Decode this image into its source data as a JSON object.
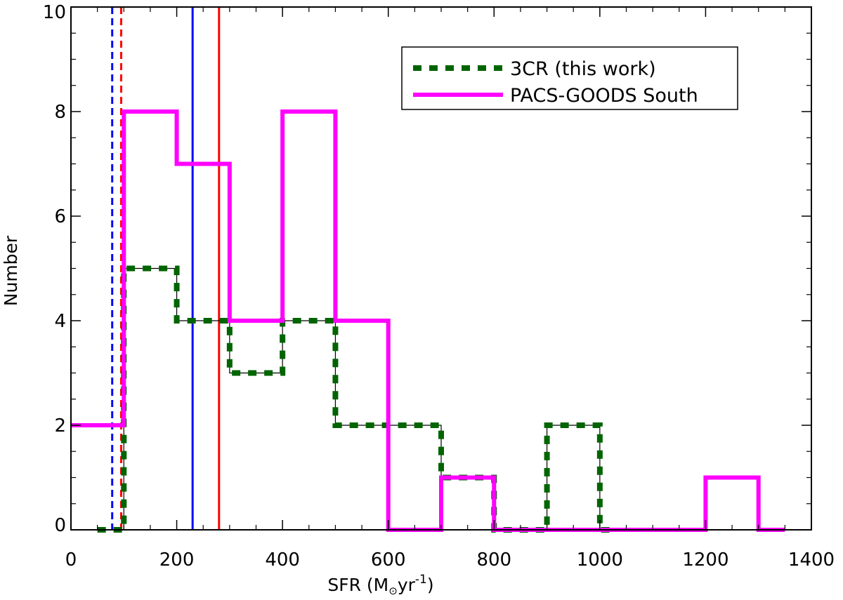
{
  "chart_data": {
    "type": "histogram",
    "xlabel": "SFR (M",
    "xlabel_sub": "⊙",
    "xlabel_tail": "yr",
    "xlabel_sup": "-1",
    "xlabel_close": ")",
    "ylabel": "Number",
    "xlim": [
      0,
      1400
    ],
    "ylim": [
      0,
      10
    ],
    "x_ticks": [
      "0",
      "200",
      "400",
      "600",
      "800",
      "1000",
      "1200",
      "1400"
    ],
    "y_ticks": [
      "0",
      "2",
      "4",
      "6",
      "8",
      "10"
    ],
    "series": [
      {
        "name": "3CR (this work)",
        "style": "dashed",
        "color": "#006400",
        "bins": [
          [
            50,
            100,
            0
          ],
          [
            100,
            200,
            5
          ],
          [
            200,
            300,
            4
          ],
          [
            300,
            400,
            3
          ],
          [
            400,
            500,
            4
          ],
          [
            500,
            700,
            2
          ],
          [
            700,
            800,
            1
          ],
          [
            800,
            900,
            0
          ],
          [
            900,
            1000,
            2
          ],
          [
            1000,
            1030,
            0
          ]
        ]
      },
      {
        "name": "PACS-GOODS South",
        "style": "solid",
        "color": "#ff00ff",
        "bins": [
          [
            0,
            100,
            2
          ],
          [
            100,
            200,
            8
          ],
          [
            200,
            300,
            7
          ],
          [
            300,
            400,
            4
          ],
          [
            400,
            500,
            8
          ],
          [
            500,
            600,
            4
          ],
          [
            600,
            700,
            0
          ],
          [
            700,
            800,
            1
          ],
          [
            800,
            1200,
            0
          ],
          [
            1200,
            1300,
            1
          ],
          [
            1300,
            1350,
            0
          ]
        ]
      }
    ],
    "reference_lines": [
      {
        "x": 78,
        "color": "#0000ff",
        "style": "dashed"
      },
      {
        "x": 95,
        "color": "#ff0000",
        "style": "dashed"
      },
      {
        "x": 230,
        "color": "#0000ff",
        "style": "solid"
      },
      {
        "x": 280,
        "color": "#ff0000",
        "style": "solid"
      }
    ],
    "legend": {
      "position": "top-right"
    }
  }
}
